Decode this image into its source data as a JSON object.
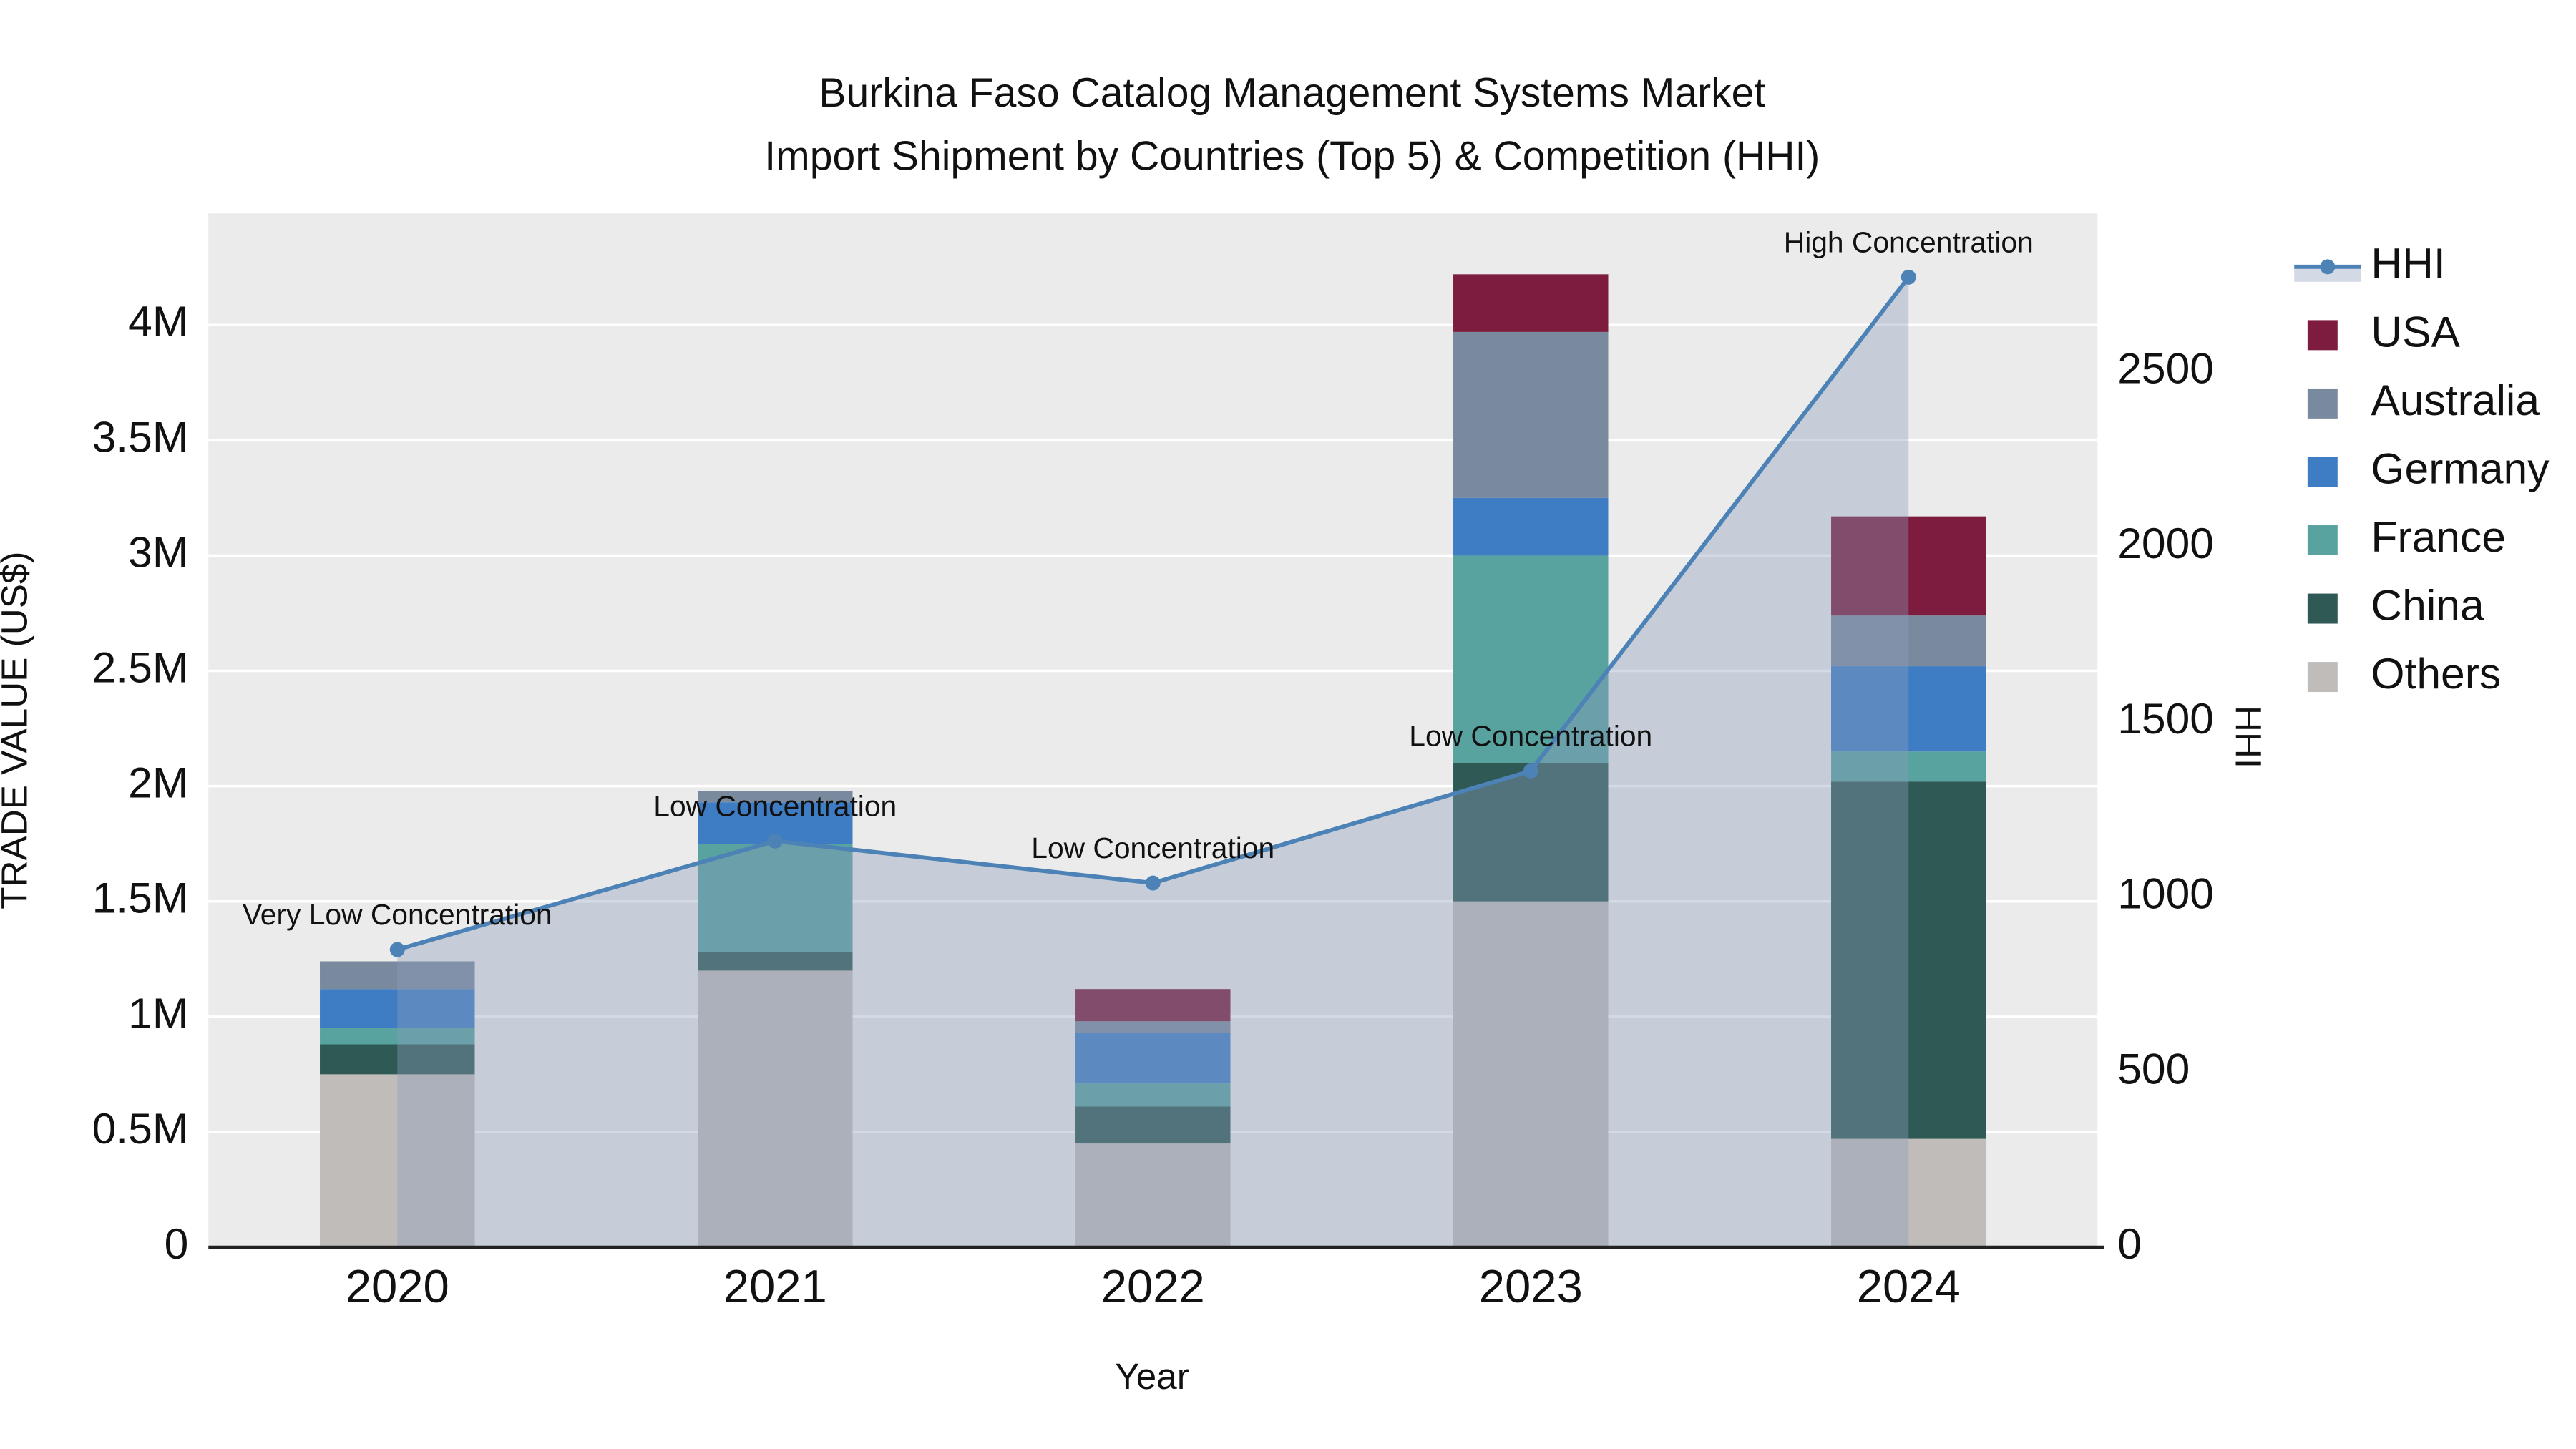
{
  "chart_data": {
    "type": "bar+line",
    "title": "Burkina Faso Catalog Management Systems Market",
    "subtitle": "Import Shipment by Countries (Top 5) & Competition (HHI)",
    "xlabel": "Year",
    "ylabel_left": "TRADE VALUE (US$)",
    "ylabel_right": "HHI",
    "plot_bg": "#ebebeb",
    "grid": true,
    "legend_position": "right",
    "x": [
      "2020",
      "2021",
      "2022",
      "2023",
      "2024"
    ],
    "bar_series": [
      {
        "name": "Others",
        "color": "#bfbcba",
        "values": [
          750000,
          1200000,
          450000,
          1500000,
          470000
        ]
      },
      {
        "name": "China",
        "color": "#2f5954",
        "values": [
          130000,
          80000,
          160000,
          600000,
          1550000
        ]
      },
      {
        "name": "France",
        "color": "#58a2a0",
        "values": [
          70000,
          470000,
          100000,
          900000,
          130000
        ]
      },
      {
        "name": "Germany",
        "color": "#3e7dc4",
        "values": [
          170000,
          180000,
          220000,
          250000,
          370000
        ]
      },
      {
        "name": "Australia",
        "color": "#7a8a9e",
        "values": [
          120000,
          50000,
          50000,
          720000,
          220000
        ]
      },
      {
        "name": "USA",
        "color": "#7d1c3e",
        "values": [
          0,
          0,
          140000,
          250000,
          430000
        ]
      }
    ],
    "line_series": {
      "name": "HHI",
      "color": "#4c82b6",
      "fill": "rgba(140,158,186,0.38)",
      "values": [
        850,
        1160,
        1040,
        1360,
        2770
      ]
    },
    "annotations": [
      "Very Low Concentration",
      "Low Concentration",
      "Low Concentration",
      "Low Concentration",
      "High Concentration"
    ],
    "left_axis": {
      "range": [
        0,
        4484000
      ],
      "tick_values": [
        0,
        500000,
        1000000,
        1500000,
        2000000,
        2500000,
        3000000,
        3500000,
        4000000
      ],
      "tick_labels": [
        "0",
        "0.5M",
        "1M",
        "1.5M",
        "2M",
        "2.5M",
        "3M",
        "3.5M",
        "4M"
      ]
    },
    "right_axis": {
      "range": [
        0,
        2952
      ],
      "tick_values": [
        0,
        500,
        1000,
        1500,
        2000,
        2500
      ],
      "tick_labels": [
        "0",
        "500",
        "1000",
        "1500",
        "2000",
        "2500"
      ]
    }
  },
  "legend": {
    "items": [
      {
        "label": "HHI",
        "type": "line",
        "color": "#4c82b6"
      },
      {
        "label": "USA",
        "type": "square",
        "color": "#7d1c3e"
      },
      {
        "label": "Australia",
        "type": "square",
        "color": "#7a8a9e"
      },
      {
        "label": "Germany",
        "type": "square",
        "color": "#3e7dc4"
      },
      {
        "label": "France",
        "type": "square",
        "color": "#58a2a0"
      },
      {
        "label": "China",
        "type": "square",
        "color": "#2f5954"
      },
      {
        "label": "Others",
        "type": "square",
        "color": "#bfbcba"
      }
    ]
  }
}
